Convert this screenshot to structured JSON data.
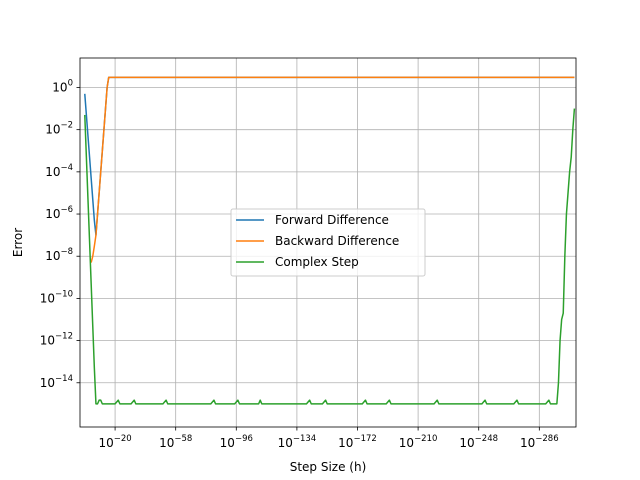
{
  "chart_data": {
    "type": "line",
    "xlabel": "Step Size (h)",
    "ylabel": "Error",
    "x_scale": "log",
    "x_reversed": true,
    "xlim": [
      100.0,
      1e-309
    ],
    "y_scale": "log",
    "ylim": [
      8e-17,
      25
    ],
    "grid": true,
    "legend_position": "center",
    "x_ticks": [
      {
        "exp": -20,
        "label": "10−20"
      },
      {
        "exp": -58,
        "label": "10−58"
      },
      {
        "exp": -96,
        "label": "10−96"
      },
      {
        "exp": -134,
        "label": "10−134"
      },
      {
        "exp": -172,
        "label": "10−172"
      },
      {
        "exp": -210,
        "label": "10−210"
      },
      {
        "exp": -248,
        "label": "10−248"
      },
      {
        "exp": -286,
        "label": "10−286"
      }
    ],
    "y_ticks": [
      {
        "exp": 0,
        "label": "100"
      },
      {
        "exp": -2,
        "label": "10−2"
      },
      {
        "exp": -4,
        "label": "10−4"
      },
      {
        "exp": -6,
        "label": "10−6"
      },
      {
        "exp": -8,
        "label": "10−8"
      },
      {
        "exp": -10,
        "label": "10−10"
      },
      {
        "exp": -12,
        "label": "10−12"
      },
      {
        "exp": -14,
        "label": "10−14"
      }
    ],
    "series": [
      {
        "name": "Forward Difference",
        "color": "#1f77b4",
        "points": [
          [
            0.1,
            0.5
          ],
          [
            0.01,
            0.05
          ],
          [
            0.001,
            0.005
          ],
          [
            0.0001,
            0.0005
          ],
          [
            1e-05,
            5e-05
          ],
          [
            1e-06,
            5e-06
          ],
          [
            1e-07,
            5e-07
          ],
          [
            1e-08,
            1e-07
          ],
          [
            1e-09,
            1e-06
          ],
          [
            1e-10,
            1e-05
          ],
          [
            1e-11,
            0.0001
          ],
          [
            1e-12,
            0.001
          ],
          [
            1e-13,
            0.01
          ],
          [
            1e-14,
            0.1
          ],
          [
            1e-15,
            1.0
          ],
          [
            1e-16,
            3.0
          ],
          [
            1e-17,
            3.0
          ],
          [
            1e-20,
            3.0
          ],
          [
            1e-50,
            3.0
          ],
          [
            1e-100,
            3.0
          ],
          [
            1e-150,
            3.0
          ],
          [
            1e-200,
            3.0
          ],
          [
            1e-250,
            3.0
          ],
          [
            1e-300,
            3.0
          ],
          [
            1e-308,
            3.0
          ]
        ]
      },
      {
        "name": "Backward Difference",
        "color": "#ff7f0e",
        "points": [
          [
            1e-05,
            5e-09
          ],
          [
            1e-06,
            1e-08
          ],
          [
            1e-07,
            3e-08
          ],
          [
            1e-08,
            1e-07
          ],
          [
            1e-09,
            1e-06
          ],
          [
            1e-10,
            1e-05
          ],
          [
            1e-11,
            0.0001
          ],
          [
            1e-12,
            0.001
          ],
          [
            1e-13,
            0.01
          ],
          [
            1e-14,
            0.1
          ],
          [
            1e-15,
            1.0
          ],
          [
            1e-16,
            3.0
          ],
          [
            1e-17,
            3.0
          ],
          [
            1e-20,
            3.0
          ],
          [
            1e-50,
            3.0
          ],
          [
            1e-100,
            3.0
          ],
          [
            1e-150,
            3.0
          ],
          [
            1e-200,
            3.0
          ],
          [
            1e-250,
            3.0
          ],
          [
            1e-300,
            3.0
          ],
          [
            1e-308,
            3.0
          ]
        ]
      },
      {
        "name": "Complex Step",
        "color": "#2ca02c",
        "points": [
          [
            0.1,
            0.05
          ],
          [
            0.01,
            0.0005
          ],
          [
            0.001,
            5e-06
          ],
          [
            0.0001,
            5e-08
          ],
          [
            1e-05,
            5e-10
          ],
          [
            1e-06,
            5e-12
          ],
          [
            1e-07,
            5e-14
          ],
          [
            1e-08,
            1e-15
          ],
          [
            1e-09,
            1e-15
          ],
          [
            1e-10,
            1.5e-15
          ],
          [
            1e-11,
            1.5e-15
          ],
          [
            1e-12,
            1e-15
          ],
          [
            1e-20,
            1e-15
          ],
          [
            1e-22,
            1.5e-15
          ],
          [
            1e-23,
            1e-15
          ],
          [
            1e-30,
            1e-15
          ],
          [
            1e-32,
            1.5e-15
          ],
          [
            1e-33,
            1e-15
          ],
          [
            1e-50,
            1e-15
          ],
          [
            1e-52,
            1.5e-15
          ],
          [
            1e-53,
            1e-15
          ],
          [
            1e-70,
            1e-15
          ],
          [
            1e-80,
            1e-15
          ],
          [
            1e-82,
            1.5e-15
          ],
          [
            1e-83,
            1e-15
          ],
          [
            1e-95,
            1e-15
          ],
          [
            1e-97,
            1.5e-15
          ],
          [
            1e-98,
            1e-15
          ],
          [
            1e-110,
            1e-15
          ],
          [
            1e-111,
            1.5e-15
          ],
          [
            1e-112,
            1e-15
          ],
          [
            1e-130,
            1e-15
          ],
          [
            1e-140,
            1e-15
          ],
          [
            1e-142,
            1.5e-15
          ],
          [
            1e-143,
            1e-15
          ],
          [
            1e-150,
            1e-15
          ],
          [
            1e-152,
            1.5e-15
          ],
          [
            1e-153,
            1e-15
          ],
          [
            1e-175,
            1e-15
          ],
          [
            1e-177,
            1.5e-15
          ],
          [
            1e-178,
            1e-15
          ],
          [
            1e-190,
            1e-15
          ],
          [
            1e-192,
            1.5e-15
          ],
          [
            1e-193,
            1e-15
          ],
          [
            1e-220,
            1e-15
          ],
          [
            1e-222,
            1.5e-15
          ],
          [
            1e-223,
            1e-15
          ],
          [
            1e-250,
            1e-15
          ],
          [
            1e-252,
            1.5e-15
          ],
          [
            1e-253,
            1e-15
          ],
          [
            1e-270,
            1e-15
          ],
          [
            1e-272,
            1.5e-15
          ],
          [
            1e-273,
            1e-15
          ],
          [
            1e-290,
            1e-15
          ],
          [
            1e-292,
            1.5e-15
          ],
          [
            1e-293,
            1e-15
          ],
          [
            1e-297,
            1e-15
          ],
          [
            1e-298,
            1e-14
          ],
          [
            1e-299,
            1e-12
          ],
          [
            1e-300,
            1e-11
          ],
          [
            1e-301,
            2e-11
          ],
          [
            1e-302,
            1e-08
          ],
          [
            1e-303,
            1e-06
          ],
          [
            1e-304,
            1e-05
          ],
          [
            1e-305,
            0.0001
          ],
          [
            1e-306,
            0.0005
          ],
          [
            1e-307,
            0.01
          ],
          [
            1e-308,
            0.1
          ]
        ]
      }
    ]
  }
}
